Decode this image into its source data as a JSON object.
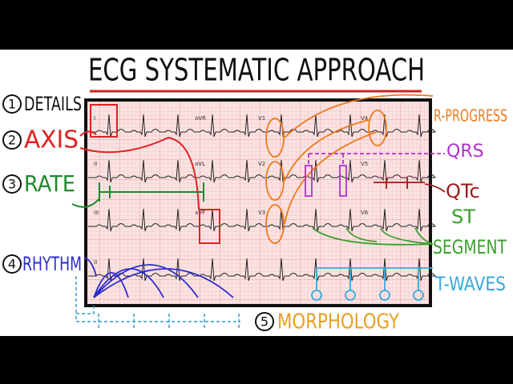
{
  "title": "ECG SYSTEMATIC APPROACH",
  "steps": [
    {
      "number": "1",
      "label": "DETAILS"
    },
    {
      "number": "2",
      "label": "AXIS"
    },
    {
      "number": "3",
      "label": "RATE"
    },
    {
      "number": "4",
      "label": "RHYTHM"
    },
    {
      "number": "5",
      "label": "MORPHOLOGY"
    }
  ],
  "morphology_items": [
    "R-PROGRESS",
    "QRS",
    "QTc",
    "ST",
    "SEGMENT",
    "T-WAVES"
  ],
  "leads": [
    [
      "I",
      "aVR",
      "V1",
      "V4"
    ],
    [
      "II",
      "aVL",
      "V2",
      "V5"
    ],
    [
      "III",
      "aVF",
      "V3",
      "V6"
    ],
    [
      "II"
    ]
  ]
}
